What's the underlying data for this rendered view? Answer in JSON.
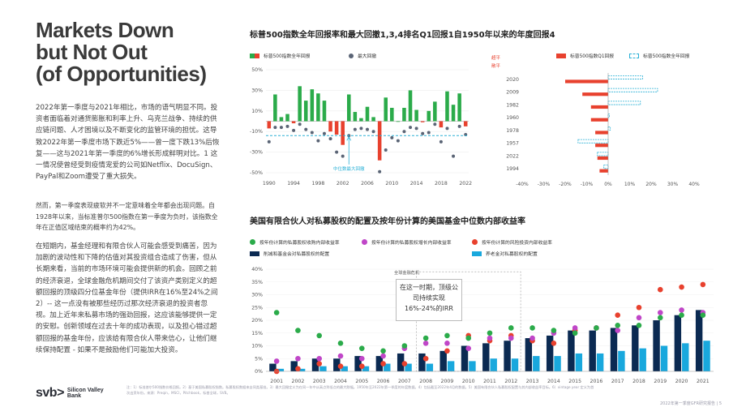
{
  "heading": {
    "lines": [
      "Markets Down",
      "but Not Out",
      "(of Opportunities)"
    ]
  },
  "paragraphs": [
    "2022年第一季度与2021年相比，市场的语气明显不同。投资者面临着对通货膨胀和利率上升、乌克兰战争、持续的供应链问题、人才困境以及不断变化的监管环境的担忧。这导致2022年第一季度市场下跌近5%——曾一度下跌13%后恢复——这与2021年第一季度的6%增长形成鲜明对比。1 这一情况使曾经受到疫情宠爱的公司如Netflix、DocuSign、PayPal和Zoom遭受了重大损失。",
    "然而，第一季度表现疲软并不一定意味着全年都会出现问题。自1928年以来，当标准普尔500指数在第一季度为负时，该指数全年在正值区域结束的概率约为42%。",
    "在短期内，基金经理和有限合伙人可能会感受到痛苦，因为加剧的波动性和下降的估值对其投资组合造成了伤害，但从长期来看，当前的市场环境可能会提供新的机会。回顾之前的经济衰退，全球金融危机期间交付了该资产类别定义的超额回报的顶级四分位基金年份（提供IRR在16%至24%之间2）-- 这一点没有被那些经历过那次经济衰退的投资者忽视。加上近年来私募市场的强劲回报，这应该能够提供一定的安慰。创新领域在过去十年的成功表现，以及担心错过超额回报的基金年份，应该给有限合伙人带来信心，让他们继续保持配置 - 如果不是鼓励他们可能加大投资。"
  ],
  "logo": {
    "mark": "svb>",
    "name_line1": "Silicon Valley",
    "name_line2": "Bank"
  },
  "footnote": "注：1）标准普尔500指数价格回报。2）基于美国私募股权指数。私募股权数据来自同类基准。3）最大回撤定义为在同一年中从高点到低点的最大跌幅。1950年至2022年第一季度的年度数据。4）包括截至2022年4月的数据。5）美国有限合伙人私募股权配置与其内部收益率目标。6）vintage year 定义为首次出资年份。来源：Preqin，MSCI，Pitchbook，标普全球，SVB。",
  "footer": "2022年第一季度GFR研究报告 | 5",
  "chart1": {
    "title": "标普500指数全年回报率和最大回撤1,3,4排名Q1回报1自1950年以来的年度回报4",
    "legend_bar": "标普500指数全年回报",
    "legend_dot": "最大回撤",
    "annotation": "中位数最大回撤",
    "colors": {
      "positive": "#2bab4a",
      "negative": "#e8412e",
      "dot": "#5a6475",
      "median": "#2ab0d6"
    }
  },
  "chart2": {
    "side_label_top": "超平",
    "side_label_bottom": "敞平",
    "legend_red": "标普500指数Q1回报",
    "legend_blue": "标普500指数全年回报",
    "colors": {
      "q1": "#e8412e",
      "full": "#2ab0d6"
    }
  },
  "chart3": {
    "title": "美国有限合伙人对私募股权的配置及按年份计算的美国基金中位数内部收益率",
    "legend": {
      "top_quartile": "按年份计算的私募股权收购内部收益率",
      "median": "按年份计算的私募股权增长内部收益率",
      "bottom": "按年份计算的风险投资内部收益率",
      "allocation": "削减和基金会对私募股权的配置",
      "target": "养老金对私募股权的配置"
    },
    "callout_label": "全球金融危机",
    "callout": "在这一时期，顶级公司持续实现16%-24%的IRR",
    "colors": {
      "navy": "#0b2a52",
      "light": "#19a8dd",
      "green": "#2bab4a",
      "purple": "#c046c8",
      "red": "#e8412e"
    }
  },
  "chart_data": [
    {
      "type": "bar",
      "title": "标普500指数全年回报率和最大回撤",
      "x_ticks": [
        "1990",
        "1994",
        "1998",
        "2002",
        "2006",
        "2010",
        "2014",
        "2018",
        "2022"
      ],
      "x": [
        1990,
        1991,
        1992,
        1993,
        1994,
        1995,
        1996,
        1997,
        1998,
        1999,
        2000,
        2001,
        2002,
        2003,
        2004,
        2005,
        2006,
        2007,
        2008,
        2009,
        2010,
        2011,
        2012,
        2013,
        2014,
        2015,
        2016,
        2017,
        2018,
        2019,
        2020,
        2021,
        2022
      ],
      "series": [
        {
          "name": "标普500指数全年回报",
          "values": [
            -7,
            26,
            4,
            7,
            -2,
            34,
            20,
            31,
            27,
            20,
            -10,
            -13,
            -23,
            26,
            9,
            3,
            14,
            4,
            -38,
            23,
            13,
            0,
            13,
            30,
            11,
            -1,
            10,
            19,
            -6,
            29,
            16,
            27,
            -5
          ]
        },
        {
          "name": "最大回撤",
          "values": [
            -20,
            -6,
            -6,
            -5,
            -9,
            -3,
            -8,
            -11,
            -19,
            -12,
            -17,
            -30,
            -34,
            -14,
            -8,
            -7,
            -8,
            -10,
            -49,
            -28,
            -16,
            -19,
            -10,
            -6,
            -7,
            -12,
            -11,
            -3,
            -20,
            -7,
            -34,
            -5,
            -13
          ]
        }
      ],
      "median_drawdown": -14,
      "ylim": [
        -50,
        50
      ],
      "y_ticks": [
        "50%",
        "30%",
        "10%",
        "-10%",
        "-30%",
        "-50%"
      ]
    },
    {
      "type": "bar",
      "title": "排名Q1回报1自1950年以来的年度回报",
      "categories": [
        "2020",
        "2009",
        "1982",
        "1960",
        "1978",
        "1957",
        "2022",
        "1994"
      ],
      "series": [
        {
          "name": "标普500指数Q1回报",
          "values": [
            -20,
            -12,
            -8,
            -8,
            -6,
            -6,
            -5,
            -4
          ]
        },
        {
          "name": "标普500指数全年回报",
          "values": [
            16,
            23,
            15,
            0,
            1,
            -14,
            -5,
            -2
          ]
        }
      ],
      "x_ticks": [
        "-40%",
        "-30%",
        "-20%",
        "-10%",
        "0%",
        "10%",
        "20%",
        "30%",
        "40%"
      ],
      "xlim": [
        -40,
        40
      ]
    },
    {
      "type": "bar",
      "title": "美国有限合伙人对私募股权的配置及按年份计算的美国基金中位数内部收益率",
      "categories": [
        "2001",
        "2002",
        "2003",
        "2004",
        "2005",
        "2006",
        "2007",
        "2008",
        "2009",
        "2010",
        "2011",
        "2012",
        "2013",
        "2014",
        "2015",
        "2016",
        "2017",
        "2018",
        "2019",
        "2020",
        "2021"
      ],
      "series": [
        {
          "name": "削减和基金会对私募股权的配置",
          "values": [
            3,
            4,
            5,
            5,
            6,
            6,
            7,
            7,
            8,
            10,
            11,
            12,
            13,
            14,
            16,
            16,
            17,
            18,
            20,
            22,
            24
          ]
        },
        {
          "name": "养老金对私募股权的配置",
          "values": [
            1,
            1,
            2,
            2,
            2,
            3,
            3,
            3,
            4,
            4,
            5,
            5,
            6,
            6,
            7,
            7,
            8,
            9,
            10,
            11,
            12
          ]
        },
        {
          "name": "按年份计算的私募股权收购内部收益率",
          "values": [
            23,
            16,
            14,
            11,
            9,
            8,
            10,
            13,
            14,
            13,
            15,
            17,
            17,
            16,
            15,
            17,
            18,
            18,
            21,
            22,
            22
          ]
        },
        {
          "name": "按年份计算的私募股权增长内部收益率",
          "values": [
            4,
            5,
            5,
            6,
            5,
            6,
            9,
            11,
            11,
            9,
            13,
            13,
            13,
            15,
            17,
            17,
            16,
            21,
            23,
            24,
            23
          ]
        },
        {
          "name": "按年份计算的风险投资内部收益率",
          "values": [
            0,
            1,
            3,
            2,
            2,
            3,
            3,
            5,
            8,
            14,
            12,
            14,
            12,
            11,
            16,
            17,
            22,
            25,
            32,
            33,
            34
          ]
        }
      ],
      "ylim": [
        0,
        40
      ],
      "y_ticks": [
        "40%",
        "35%",
        "30%",
        "25%",
        "20%",
        "15%",
        "10%",
        "5%",
        "0%"
      ]
    }
  ]
}
